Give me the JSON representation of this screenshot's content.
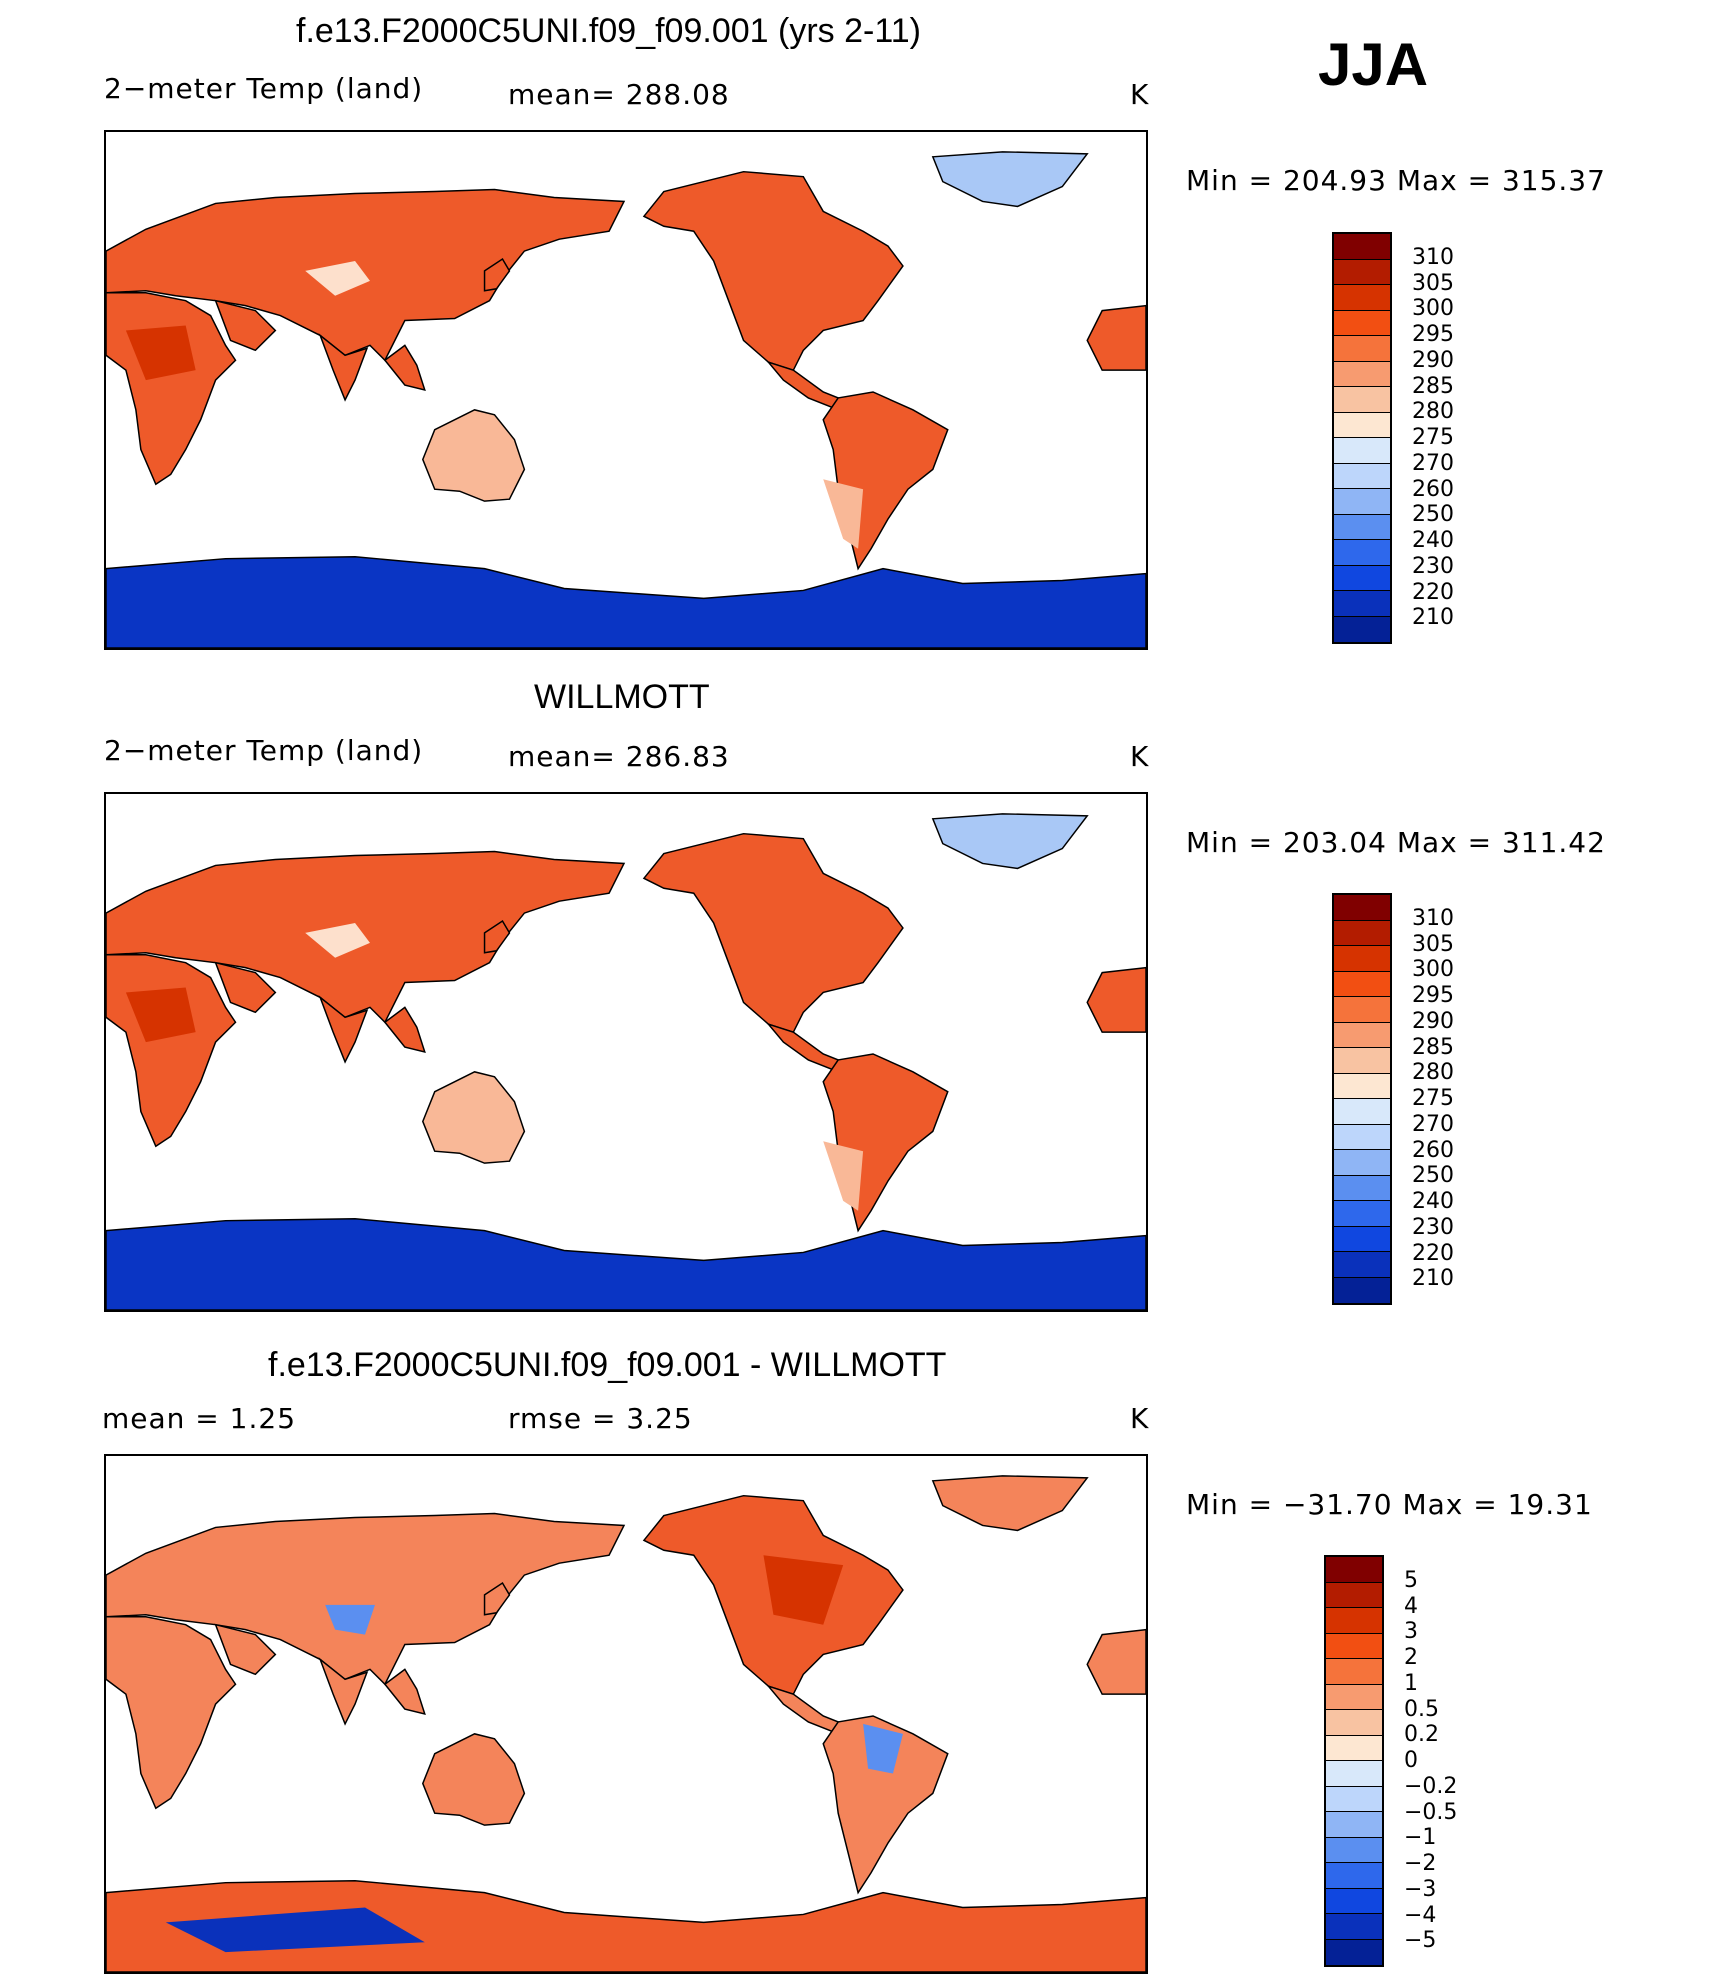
{
  "season": "JJA",
  "panels": [
    {
      "id": "model",
      "title": "f.e13.F2000C5UNI.f09_f09.001 (yrs 2-11)",
      "left_label": "2−meter Temp (land)",
      "mid_label": "mean=  288.08",
      "units": "K",
      "minmax": "Min  =  204.93  Max  =  315.37",
      "map_type": "abs"
    },
    {
      "id": "obs",
      "title": "WILLMOTT",
      "left_label": "2−meter Temp (land)",
      "mid_label": "mean=  286.83",
      "units": "K",
      "minmax": "Min  =  203.04  Max  =  311.42",
      "map_type": "abs"
    },
    {
      "id": "diff",
      "title": "f.e13.F2000C5UNI.f09_f09.001 - WILLMOTT",
      "left_label": "mean  =      1.25",
      "mid_label": "rmse  =      3.25",
      "units": "K",
      "minmax": "Min  =  −31.70  Max  =     19.31",
      "map_type": "diff"
    }
  ],
  "colorbars": {
    "abs": {
      "colors": [
        "#800000",
        "#b31c00",
        "#d63300",
        "#f24f12",
        "#f5733b",
        "#f79b70",
        "#f8c3a2",
        "#fde7d2",
        "#d8e8fa",
        "#bdd6fb",
        "#8fb5f5",
        "#5b8ff0",
        "#2e68ec",
        "#1047e0",
        "#0a31bb",
        "#042196"
      ],
      "labels": [
        "310",
        "305",
        "300",
        "295",
        "290",
        "285",
        "280",
        "275",
        "270",
        "260",
        "250",
        "240",
        "230",
        "220",
        "210"
      ]
    },
    "diff": {
      "colors": [
        "#800000",
        "#b31c00",
        "#d63300",
        "#f24f12",
        "#f5733b",
        "#f79b70",
        "#f8c3a2",
        "#fde7d2",
        "#d8e8fa",
        "#bdd6fb",
        "#8fb5f5",
        "#5b8ff0",
        "#2e68ec",
        "#1047e0",
        "#0a31bb",
        "#042196"
      ],
      "labels": [
        "5",
        "4",
        "3",
        "2",
        "1",
        "0.5",
        "0.2",
        "0",
        "−0.2",
        "−0.5",
        "−1",
        "−2",
        "−3",
        "−4",
        "−5"
      ]
    }
  },
  "colors": {
    "land_warm": "#ee5a2a",
    "land_mid": "#f4845a",
    "land_cool": "#f9b897",
    "land_pale": "#fde0cc",
    "ice_light": "#a9c8f6",
    "antarctic": "#0a35c4",
    "antarctic_dark": "#0a1e96"
  }
}
